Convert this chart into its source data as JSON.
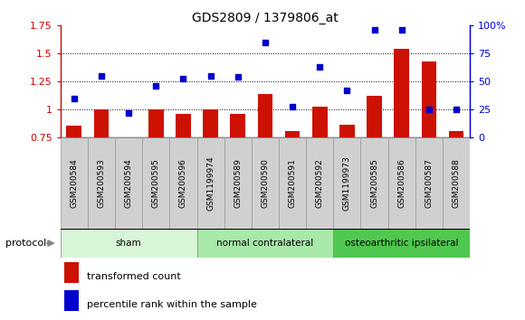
{
  "title": "GDS2809 / 1379806_at",
  "categories": [
    "GSM200584",
    "GSM200593",
    "GSM200594",
    "GSM200595",
    "GSM200596",
    "GSM1199974",
    "GSM200589",
    "GSM200590",
    "GSM200591",
    "GSM200592",
    "GSM1199973",
    "GSM200585",
    "GSM200586",
    "GSM200587",
    "GSM200588"
  ],
  "groups": [
    {
      "label": "sham",
      "start": 0,
      "end": 5,
      "color": "#d8f5d8"
    },
    {
      "label": "normal contralateral",
      "start": 5,
      "end": 10,
      "color": "#a8e8a8"
    },
    {
      "label": "osteoarthritic ipsilateral",
      "start": 10,
      "end": 15,
      "color": "#50c850"
    }
  ],
  "red_bars": [
    0.855,
    1.0,
    0.755,
    1.0,
    0.96,
    1.0,
    0.965,
    1.14,
    0.805,
    1.03,
    0.865,
    1.12,
    1.545,
    1.43,
    0.805
  ],
  "blue_dots_pct": [
    35,
    55,
    22,
    46,
    53,
    55,
    54,
    85,
    28,
    63,
    42,
    96,
    96,
    25,
    25
  ],
  "ylim_left": [
    0.75,
    1.75
  ],
  "ylim_right": [
    0,
    100
  ],
  "yticks_left": [
    0.75,
    1.0,
    1.25,
    1.5,
    1.75
  ],
  "ytick_labels_left": [
    "0.75",
    "1",
    "1.25",
    "1.5",
    "1.75"
  ],
  "yticks_right": [
    0,
    25,
    50,
    75,
    100
  ],
  "ytick_labels_right": [
    "0",
    "25",
    "50",
    "75",
    "100%"
  ],
  "left_color": "#cc0000",
  "right_color": "#0000cc",
  "bar_color": "#cc1100",
  "dot_color": "#0000cc",
  "bar_width": 0.55,
  "baseline": 0.75,
  "hlines": [
    1.0,
    1.25,
    1.5
  ],
  "protocol_label": "protocol",
  "legend_items": [
    {
      "color": "#cc1100",
      "label": "transformed count"
    },
    {
      "color": "#0000cc",
      "label": "percentile rank within the sample"
    }
  ]
}
